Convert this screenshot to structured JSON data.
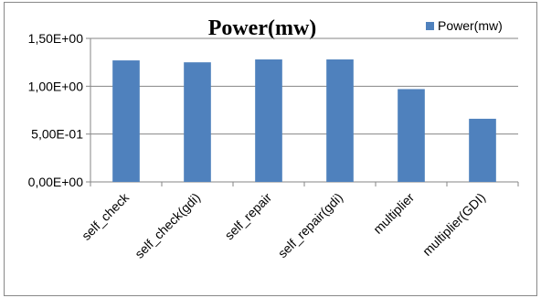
{
  "chart_data": {
    "type": "bar",
    "title": "Power(mw)",
    "categories": [
      "self_check",
      "self_check(gdi)",
      "self_repair",
      "self_repair(gdi)",
      "multiplier",
      "multiplier(GDI)"
    ],
    "series": [
      {
        "name": "Power(mw)",
        "values": [
          1.27,
          1.25,
          1.28,
          1.28,
          0.97,
          0.66
        ],
        "color": "#4f81bd"
      }
    ],
    "ylim": [
      0,
      1.5
    ],
    "yticks": [
      0,
      0.5,
      1.0,
      1.5
    ],
    "ytick_labels": [
      "0,00E+00",
      "5,00E-01",
      "1,00E+00",
      "1,50E+00"
    ],
    "xlabel": "",
    "ylabel": "",
    "grid": true,
    "legend_position": "top-right"
  }
}
